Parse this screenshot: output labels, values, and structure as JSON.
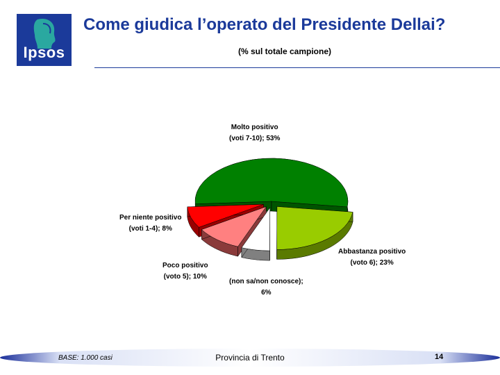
{
  "logo": {
    "text": "Ipsos"
  },
  "header": {
    "title": "Come giudica l’operato del Presidente Dellai?",
    "subtitle": "(% sul totale campione)"
  },
  "chart_data": {
    "type": "pie",
    "title": "Come giudica l’operato del Presidente Dellai?",
    "subtitle": "(% sul totale campione)",
    "slices": [
      {
        "label_line1": "Molto positivo",
        "label_line2": "(voti 7-10); 53%",
        "value": 53,
        "color": "#008000",
        "side": "#005400",
        "exploded": false
      },
      {
        "label_line1": "Abbastanza positivo",
        "label_line2": "(voto 6); 23%",
        "value": 23,
        "color": "#99cc00",
        "side": "#5a7a00",
        "exploded": true
      },
      {
        "label_line1": "(non sa/non conosce);",
        "label_line2": "6%",
        "value": 6,
        "color": "#ffffff",
        "side": "#808080",
        "exploded": true
      },
      {
        "label_line1": "Poco positivo",
        "label_line2": "(voto 5); 10%",
        "value": 10,
        "color": "#ff8080",
        "side": "#8a3a3a",
        "exploded": true
      },
      {
        "label_line1": "Per niente positivo",
        "label_line2": "(voti 1-4); 8%",
        "value": 8,
        "color": "#ff0000",
        "side": "#990000",
        "exploded": true
      }
    ]
  },
  "footer": {
    "base": "BASE: 1.000 casi",
    "organization": "Provincia di Trento",
    "page_number": "14"
  }
}
